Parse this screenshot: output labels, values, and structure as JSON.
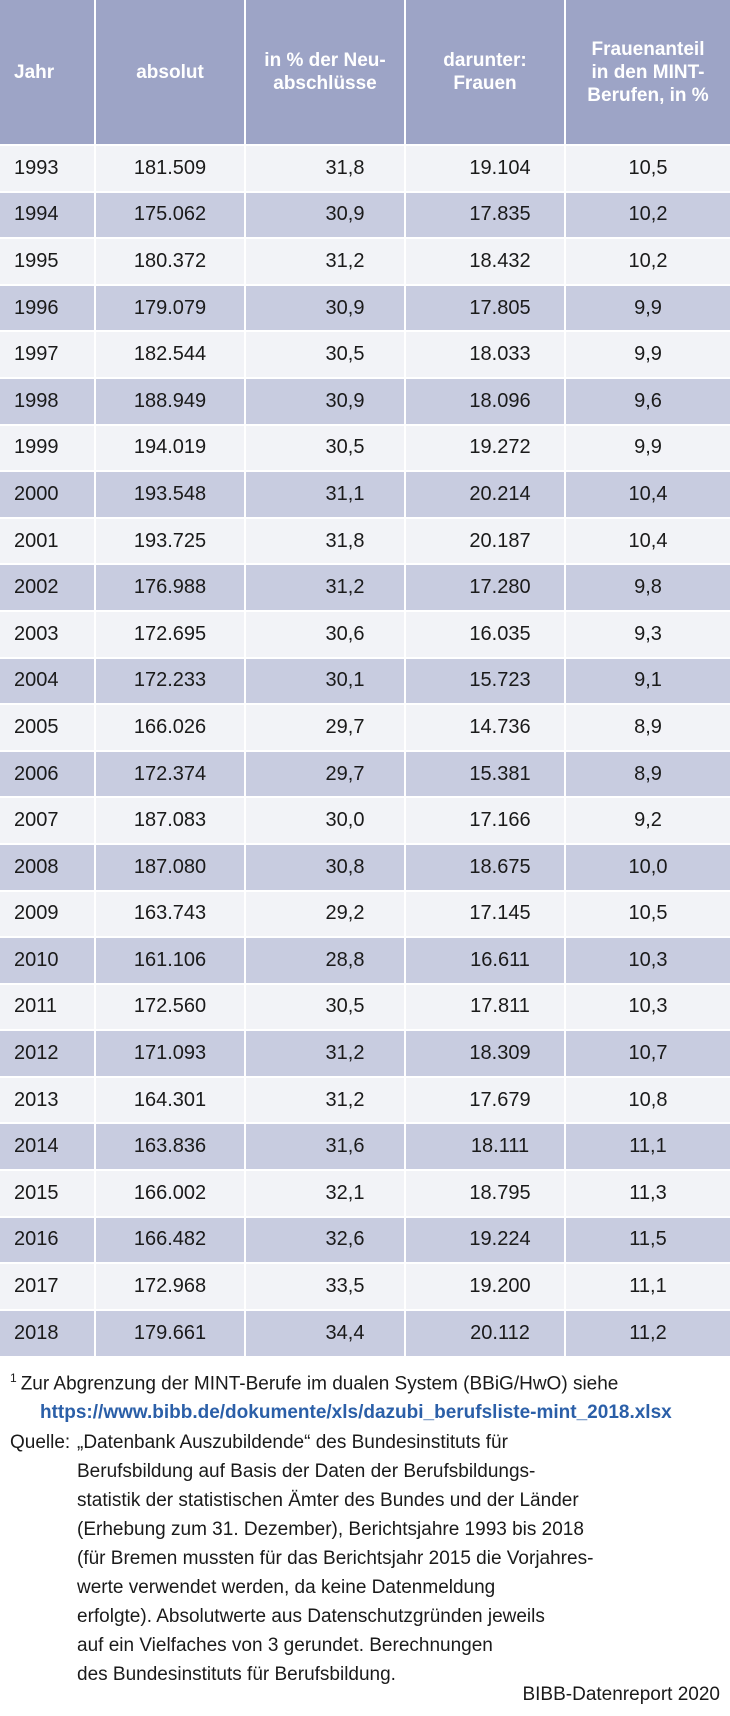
{
  "table": {
    "headers": [
      "Jahr",
      "absolut",
      "in % der Neu-\nabschlüsse",
      "darunter:\nFrauen",
      "Frauenanteil\nin den MINT-\nBerufen, in %"
    ],
    "rows": [
      [
        "1993",
        "181.509",
        "31,8",
        "19.104",
        "10,5"
      ],
      [
        "1994",
        "175.062",
        "30,9",
        "17.835",
        "10,2"
      ],
      [
        "1995",
        "180.372",
        "31,2",
        "18.432",
        "10,2"
      ],
      [
        "1996",
        "179.079",
        "30,9",
        "17.805",
        "9,9"
      ],
      [
        "1997",
        "182.544",
        "30,5",
        "18.033",
        "9,9"
      ],
      [
        "1998",
        "188.949",
        "30,9",
        "18.096",
        "9,6"
      ],
      [
        "1999",
        "194.019",
        "30,5",
        "19.272",
        "9,9"
      ],
      [
        "2000",
        "193.548",
        "31,1",
        "20.214",
        "10,4"
      ],
      [
        "2001",
        "193.725",
        "31,8",
        "20.187",
        "10,4"
      ],
      [
        "2002",
        "176.988",
        "31,2",
        "17.280",
        "9,8"
      ],
      [
        "2003",
        "172.695",
        "30,6",
        "16.035",
        "9,3"
      ],
      [
        "2004",
        "172.233",
        "30,1",
        "15.723",
        "9,1"
      ],
      [
        "2005",
        "166.026",
        "29,7",
        "14.736",
        "8,9"
      ],
      [
        "2006",
        "172.374",
        "29,7",
        "15.381",
        "8,9"
      ],
      [
        "2007",
        "187.083",
        "30,0",
        "17.166",
        "9,2"
      ],
      [
        "2008",
        "187.080",
        "30,8",
        "18.675",
        "10,0"
      ],
      [
        "2009",
        "163.743",
        "29,2",
        "17.145",
        "10,5"
      ],
      [
        "2010",
        "161.106",
        "28,8",
        "16.611",
        "10,3"
      ],
      [
        "2011",
        "172.560",
        "30,5",
        "17.811",
        "10,3"
      ],
      [
        "2012",
        "171.093",
        "31,2",
        "18.309",
        "10,7"
      ],
      [
        "2013",
        "164.301",
        "31,2",
        "17.679",
        "10,8"
      ],
      [
        "2014",
        "163.836",
        "31,6",
        "18.111",
        "11,1"
      ],
      [
        "2015",
        "166.002",
        "32,1",
        "18.795",
        "11,3"
      ],
      [
        "2016",
        "166.482",
        "32,6",
        "19.224",
        "11,5"
      ],
      [
        "2017",
        "172.968",
        "33,5",
        "19.200",
        "11,1"
      ],
      [
        "2018",
        "179.661",
        "34,4",
        "20.112",
        "11,2"
      ]
    ]
  },
  "footnote": {
    "marker": "1",
    "text": "Zur Abgrenzung der MINT-Berufe im dualen System (BBiG/HwO) siehe",
    "link": "https://www.bibb.de/dokumente/xls/dazubi_berufsliste-mint_2018.xlsx"
  },
  "source": {
    "label": "Quelle:",
    "lines": [
      "„Datenbank Auszubildende“ des Bundesinstituts für",
      "Berufsbildung auf Basis der Daten der Berufsbildungs-",
      "statistik der statistischen Ämter des Bundes und der Länder",
      "(Erhebung zum 31. Dezember), Berichtsjahre 1993 bis 2018",
      "(für Bremen mussten für das Berichtsjahr 2015 die Vorjahres-",
      "werte verwendet werden, da keine Datenmeldung",
      "erfolgte). Absolutwerte aus Datenschutzgründen jeweils",
      "auf ein Vielfaches von 3 gerundet. Berechnungen",
      "des Bundesinstituts für Berufsbildung."
    ]
  },
  "credit": "BIBB-Datenreport 2020",
  "colors": {
    "header_bg": "#9da4c6",
    "row_light": "#f2f3f7",
    "row_dark": "#c8cce0",
    "link": "#2b5fa8"
  }
}
